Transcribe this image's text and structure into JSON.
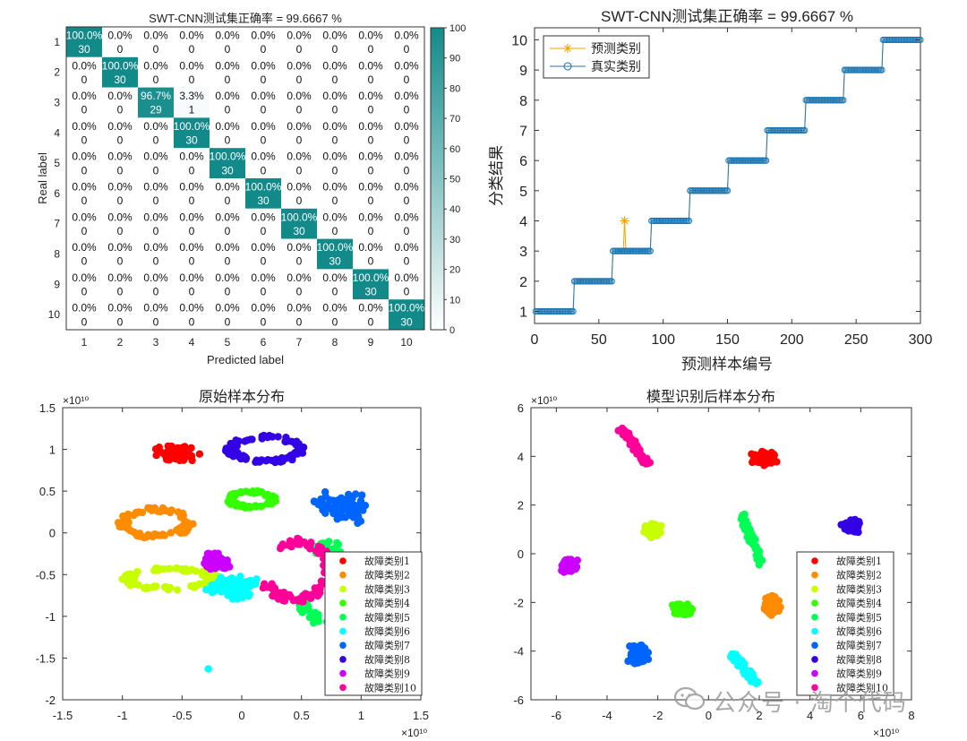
{
  "chart_data": [
    {
      "type": "heatmap",
      "title": "SWT-CNN测试集正确率 = 99.6667 %",
      "xlabel": "Predicted label",
      "ylabel": "Real label",
      "classes": [
        "1",
        "2",
        "3",
        "4",
        "5",
        "6",
        "7",
        "8",
        "9",
        "10"
      ],
      "counts": [
        [
          30,
          0,
          0,
          0,
          0,
          0,
          0,
          0,
          0,
          0
        ],
        [
          0,
          30,
          0,
          0,
          0,
          0,
          0,
          0,
          0,
          0
        ],
        [
          0,
          0,
          29,
          1,
          0,
          0,
          0,
          0,
          0,
          0
        ],
        [
          0,
          0,
          0,
          30,
          0,
          0,
          0,
          0,
          0,
          0
        ],
        [
          0,
          0,
          0,
          0,
          30,
          0,
          0,
          0,
          0,
          0
        ],
        [
          0,
          0,
          0,
          0,
          0,
          30,
          0,
          0,
          0,
          0
        ],
        [
          0,
          0,
          0,
          0,
          0,
          0,
          30,
          0,
          0,
          0
        ],
        [
          0,
          0,
          0,
          0,
          0,
          0,
          0,
          30,
          0,
          0
        ],
        [
          0,
          0,
          0,
          0,
          0,
          0,
          0,
          0,
          30,
          0
        ],
        [
          0,
          0,
          0,
          0,
          0,
          0,
          0,
          0,
          0,
          30
        ]
      ],
      "percents": [
        [
          "100.0%",
          "0.0%",
          "0.0%",
          "0.0%",
          "0.0%",
          "0.0%",
          "0.0%",
          "0.0%",
          "0.0%",
          "0.0%"
        ],
        [
          "0.0%",
          "100.0%",
          "0.0%",
          "0.0%",
          "0.0%",
          "0.0%",
          "0.0%",
          "0.0%",
          "0.0%",
          "0.0%"
        ],
        [
          "0.0%",
          "0.0%",
          "96.7%",
          "3.3%",
          "0.0%",
          "0.0%",
          "0.0%",
          "0.0%",
          "0.0%",
          "0.0%"
        ],
        [
          "0.0%",
          "0.0%",
          "0.0%",
          "100.0%",
          "0.0%",
          "0.0%",
          "0.0%",
          "0.0%",
          "0.0%",
          "0.0%"
        ],
        [
          "0.0%",
          "0.0%",
          "0.0%",
          "0.0%",
          "100.0%",
          "0.0%",
          "0.0%",
          "0.0%",
          "0.0%",
          "0.0%"
        ],
        [
          "0.0%",
          "0.0%",
          "0.0%",
          "0.0%",
          "0.0%",
          "100.0%",
          "0.0%",
          "0.0%",
          "0.0%",
          "0.0%"
        ],
        [
          "0.0%",
          "0.0%",
          "0.0%",
          "0.0%",
          "0.0%",
          "0.0%",
          "100.0%",
          "0.0%",
          "0.0%",
          "0.0%"
        ],
        [
          "0.0%",
          "0.0%",
          "0.0%",
          "0.0%",
          "0.0%",
          "0.0%",
          "0.0%",
          "100.0%",
          "0.0%",
          "0.0%"
        ],
        [
          "0.0%",
          "0.0%",
          "0.0%",
          "0.0%",
          "0.0%",
          "0.0%",
          "0.0%",
          "0.0%",
          "100.0%",
          "0.0%"
        ],
        [
          "0.0%",
          "0.0%",
          "0.0%",
          "0.0%",
          "0.0%",
          "0.0%",
          "0.0%",
          "0.0%",
          "0.0%",
          "100.0%"
        ]
      ],
      "colorbar": {
        "min": 0,
        "max": 100,
        "ticks": [
          0,
          10,
          20,
          30,
          40,
          50,
          60,
          70,
          80,
          90,
          100
        ]
      },
      "colors": {
        "high": "#138a8a",
        "low": "#ffffff"
      }
    },
    {
      "type": "line",
      "title": "SWT-CNN测试集正确率 = 99.6667 %",
      "xlabel": "预测样本编号",
      "ylabel": "分类结果",
      "xlim": [
        0,
        300
      ],
      "ylim": [
        0.6,
        10.4
      ],
      "xticks": [
        0,
        50,
        100,
        150,
        200,
        250,
        300
      ],
      "yticks": [
        1,
        2,
        3,
        4,
        5,
        6,
        7,
        8,
        9,
        10
      ],
      "samples_per_class": 30,
      "misclassified": [
        {
          "sample": 70,
          "predicted": 4
        }
      ],
      "legend": [
        "预测类别",
        "真实类别"
      ],
      "legend_position": "top-left",
      "colors": {
        "predicted": "#f0a500",
        "actual": "#1f78b4"
      }
    },
    {
      "type": "scatter",
      "title": "原始样本分布",
      "exponent_label": "×10¹⁰",
      "xlim": [
        -1.5,
        1.5
      ],
      "ylim": [
        -2,
        1.5
      ],
      "xticks": [
        -1.5,
        -1,
        -0.5,
        0,
        0.5,
        1,
        1.5
      ],
      "xtick_labels": [
        "-1.5",
        "-1",
        "-0.5",
        "0",
        "0.5",
        "1",
        "1.5"
      ],
      "yticks": [
        -2,
        -1.5,
        -1,
        -0.5,
        0,
        0.5,
        1,
        1.5
      ],
      "ytick_labels": [
        "-2",
        "-1.5",
        "-1",
        "-0.5",
        "0",
        "0.5",
        "1",
        "1.5"
      ],
      "legend_position": "bottom-right",
      "legend": [
        "故障类别1",
        "故障类别2",
        "故障类别3",
        "故障类别4",
        "故障类别5",
        "故障类别6",
        "故障类别7",
        "故障类别8",
        "故障类别9",
        "故障类别10"
      ],
      "clusters": [
        {
          "cls": 1,
          "shape": "blob",
          "cx": -0.55,
          "cy": 0.95,
          "rx": 0.22,
          "ry": 0.12
        },
        {
          "cls": 2,
          "shape": "ring",
          "cx": -0.72,
          "cy": 0.12,
          "rx": 0.3,
          "ry": 0.18
        },
        {
          "cls": 3,
          "shape": "ring",
          "cx": -0.6,
          "cy": -0.55,
          "rx": 0.4,
          "ry": 0.13
        },
        {
          "cls": 4,
          "shape": "ring",
          "cx": 0.08,
          "cy": 0.4,
          "rx": 0.2,
          "ry": 0.1
        },
        {
          "cls": 5,
          "shape": "arc",
          "cx": 0.72,
          "cy": -0.62,
          "rx": 0.26,
          "ry": 0.48
        },
        {
          "cls": 6,
          "shape": "blob",
          "cx": -0.08,
          "cy": -0.65,
          "rx": 0.25,
          "ry": 0.2
        },
        {
          "cls": 7,
          "shape": "blob",
          "cx": 0.85,
          "cy": 0.3,
          "rx": 0.3,
          "ry": 0.22
        },
        {
          "cls": 8,
          "shape": "ring",
          "cx": 0.2,
          "cy": 1.0,
          "rx": 0.32,
          "ry": 0.16
        },
        {
          "cls": 9,
          "shape": "blob",
          "cx": -0.22,
          "cy": -0.35,
          "rx": 0.14,
          "ry": 0.14
        },
        {
          "cls": 10,
          "shape": "arc",
          "cx": 0.45,
          "cy": -0.45,
          "rx": 0.3,
          "ry": 0.35
        }
      ],
      "outliers": [
        {
          "cls": 6,
          "x": -0.28,
          "y": -1.63
        }
      ]
    },
    {
      "type": "scatter",
      "title": "模型识别后样本分布",
      "exponent_label": "×10¹⁰",
      "xlim": [
        -7,
        8
      ],
      "ylim": [
        -6,
        6
      ],
      "xticks": [
        -6,
        -4,
        -2,
        0,
        2,
        4,
        6,
        8
      ],
      "xtick_labels": [
        "-6",
        "-4",
        "-2",
        "0",
        "2",
        "4",
        "6",
        "8"
      ],
      "yticks": [
        -6,
        -4,
        -2,
        0,
        2,
        4,
        6
      ],
      "ytick_labels": [
        "-6",
        "-4",
        "-2",
        "0",
        "2",
        "4",
        "6"
      ],
      "legend_position": "bottom-right",
      "legend": [
        "故障类别1",
        "故障类别2",
        "故障类别3",
        "故障类别4",
        "故障类别5",
        "故障类别6",
        "故障类别7",
        "故障类别8",
        "故障类别9",
        "故障类别10"
      ],
      "clusters": [
        {
          "cls": 1,
          "shape": "blob",
          "cx": 2.2,
          "cy": 3.9,
          "rx": 0.6,
          "ry": 0.35
        },
        {
          "cls": 2,
          "shape": "blob",
          "cx": 2.5,
          "cy": -2.1,
          "rx": 0.4,
          "ry": 0.5
        },
        {
          "cls": 3,
          "shape": "blob",
          "cx": -2.2,
          "cy": 1.0,
          "rx": 0.4,
          "ry": 0.4
        },
        {
          "cls": 4,
          "shape": "blob",
          "cx": -1.0,
          "cy": -2.3,
          "rx": 0.5,
          "ry": 0.3
        },
        {
          "cls": 5,
          "shape": "line",
          "cx": 1.7,
          "cy": 0.6,
          "rx": 0.5,
          "ry": 1.0
        },
        {
          "cls": 6,
          "shape": "line",
          "cx": 1.4,
          "cy": -4.7,
          "rx": 0.6,
          "ry": 0.6
        },
        {
          "cls": 7,
          "shape": "blob",
          "cx": -2.8,
          "cy": -4.1,
          "rx": 0.5,
          "ry": 0.6
        },
        {
          "cls": 8,
          "shape": "blob",
          "cx": 5.6,
          "cy": 1.1,
          "rx": 0.45,
          "ry": 0.35
        },
        {
          "cls": 9,
          "shape": "blob",
          "cx": -5.5,
          "cy": -0.5,
          "rx": 0.4,
          "ry": 0.35
        },
        {
          "cls": 10,
          "shape": "line",
          "cx": -2.9,
          "cy": 4.4,
          "rx": 0.6,
          "ry": 0.7
        }
      ]
    }
  ],
  "class_colors": [
    "#ff0000",
    "#ff8c00",
    "#c8ff00",
    "#33ff00",
    "#00ff55",
    "#00ffff",
    "#0064ff",
    "#3300e6",
    "#cc00ff",
    "#ff0099"
  ],
  "watermark": {
    "icon": "wechat-icon",
    "text": "公众号 · 淘个代码"
  }
}
